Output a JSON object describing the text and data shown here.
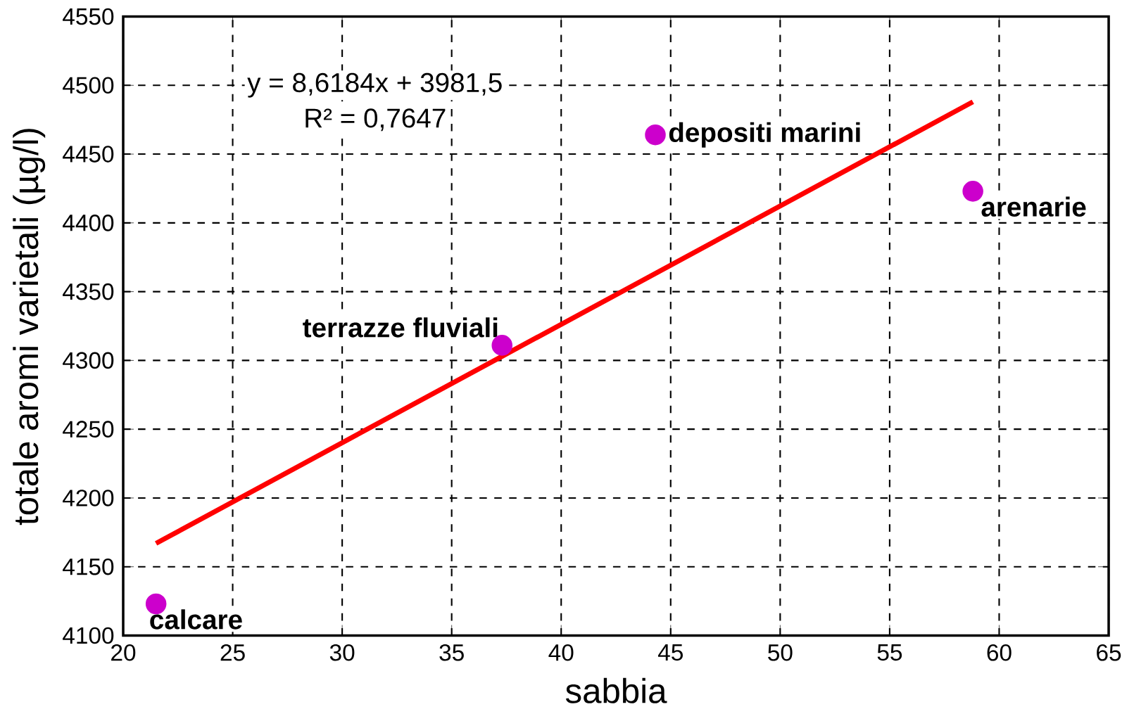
{
  "chart_data": {
    "type": "scatter",
    "xlabel": "sabbia",
    "ylabel": "totale aromi varietali (µg/l)",
    "xlim": [
      20,
      65
    ],
    "xticks": [
      20,
      25,
      30,
      35,
      40,
      45,
      50,
      55,
      60,
      65
    ],
    "ylim": [
      4100,
      4550
    ],
    "yticks": [
      4100,
      4150,
      4200,
      4250,
      4300,
      4350,
      4400,
      4450,
      4500,
      4550
    ],
    "grid": true,
    "series": [
      {
        "marker": "circle",
        "color": "#cc00cc",
        "x": [
          21.5,
          37.3,
          44.3,
          58.8
        ],
        "values": [
          4123,
          4311,
          4464,
          4423
        ]
      },
      {
        "type": "line",
        "marker": "none",
        "color": "#ff0000",
        "x": [
          21.5,
          58.8
        ],
        "values": [
          4167,
          4488
        ]
      }
    ],
    "annotations": [
      "y = 8,6184x + 3981,5",
      "R² = 0,7647",
      {
        "text": "calcare",
        "x": 21.5,
        "y": 4123
      },
      {
        "text": "terrazze fluviali",
        "x": 37.3,
        "y": 4311
      },
      {
        "text": "depositi marini",
        "x": 44.3,
        "y": 4464
      },
      {
        "text": "arenarie",
        "x": 58.8,
        "y": 4423
      }
    ]
  }
}
